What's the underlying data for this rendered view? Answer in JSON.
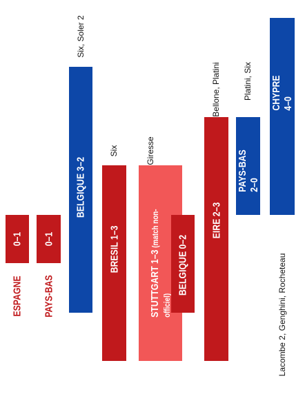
{
  "chart_data": {
    "type": "bar",
    "orientation": "vertical",
    "text_orientation": "rotated-90",
    "colors": {
      "defeat": "#c0191c",
      "victory": "#0d47a8",
      "unofficial": "#f25757",
      "label_on_dark": "#ffffff"
    },
    "matches": [
      {
        "opponent": "ESPAGNE",
        "score": "0–1",
        "result": "defeat",
        "scorers": ""
      },
      {
        "opponent": "PAYS-BAS",
        "score": "0–1",
        "result": "defeat",
        "scorers": ""
      },
      {
        "opponent": "BELGIQUE",
        "score": "3–2",
        "result": "victory",
        "scorers": "Six, Soler 2"
      },
      {
        "opponent": "BRESIL",
        "score": "1–3",
        "result": "defeat",
        "scorers": "Six"
      },
      {
        "opponent": "STUTTGART",
        "score": "1–3",
        "note": "(match non-officiel)",
        "result": "unofficial",
        "scorers": "Giresse"
      },
      {
        "opponent": "BELGIQUE",
        "score": "0–2",
        "result": "defeat",
        "scorers": ""
      },
      {
        "opponent": "EIRE",
        "score": "2–3",
        "result": "defeat",
        "scorers": "Bellone, Platini"
      },
      {
        "opponent": "PAYS-BAS",
        "score": "2–0",
        "result": "victory",
        "scorers": "Platini, Six"
      },
      {
        "opponent": "CHYPRE",
        "score": "4–0",
        "result": "victory",
        "scorers": "Lacombe 2, Genghini, Rocheteau"
      }
    ]
  }
}
